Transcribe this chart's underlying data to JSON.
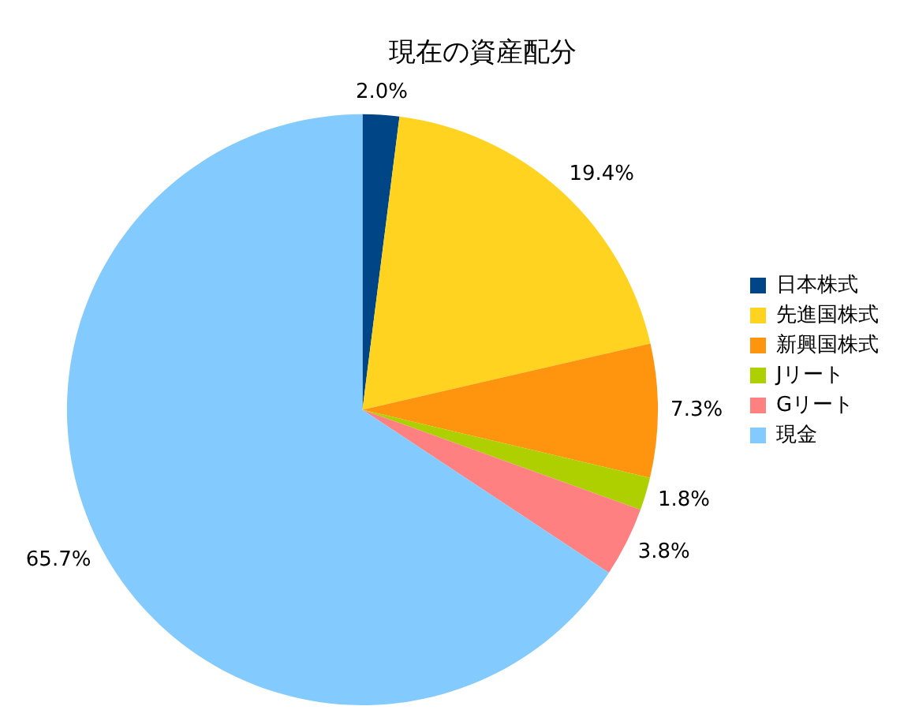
{
  "chart_data": {
    "type": "pie",
    "title": "現在の資産配分",
    "categories": [
      "日本株式",
      "先進国株式",
      "新興国株式",
      "Jリート",
      "Gリート",
      "現金"
    ],
    "values": [
      2.0,
      19.4,
      7.3,
      1.8,
      3.8,
      65.7
    ],
    "colors": [
      "#004586",
      "#ffd320",
      "#ff950e",
      "#aecf00",
      "#ff8080",
      "#83caff"
    ],
    "value_labels": [
      "2.0%",
      "19.4%",
      "7.3%",
      "1.8%",
      "3.8%",
      "65.7%"
    ],
    "legend": "right"
  }
}
